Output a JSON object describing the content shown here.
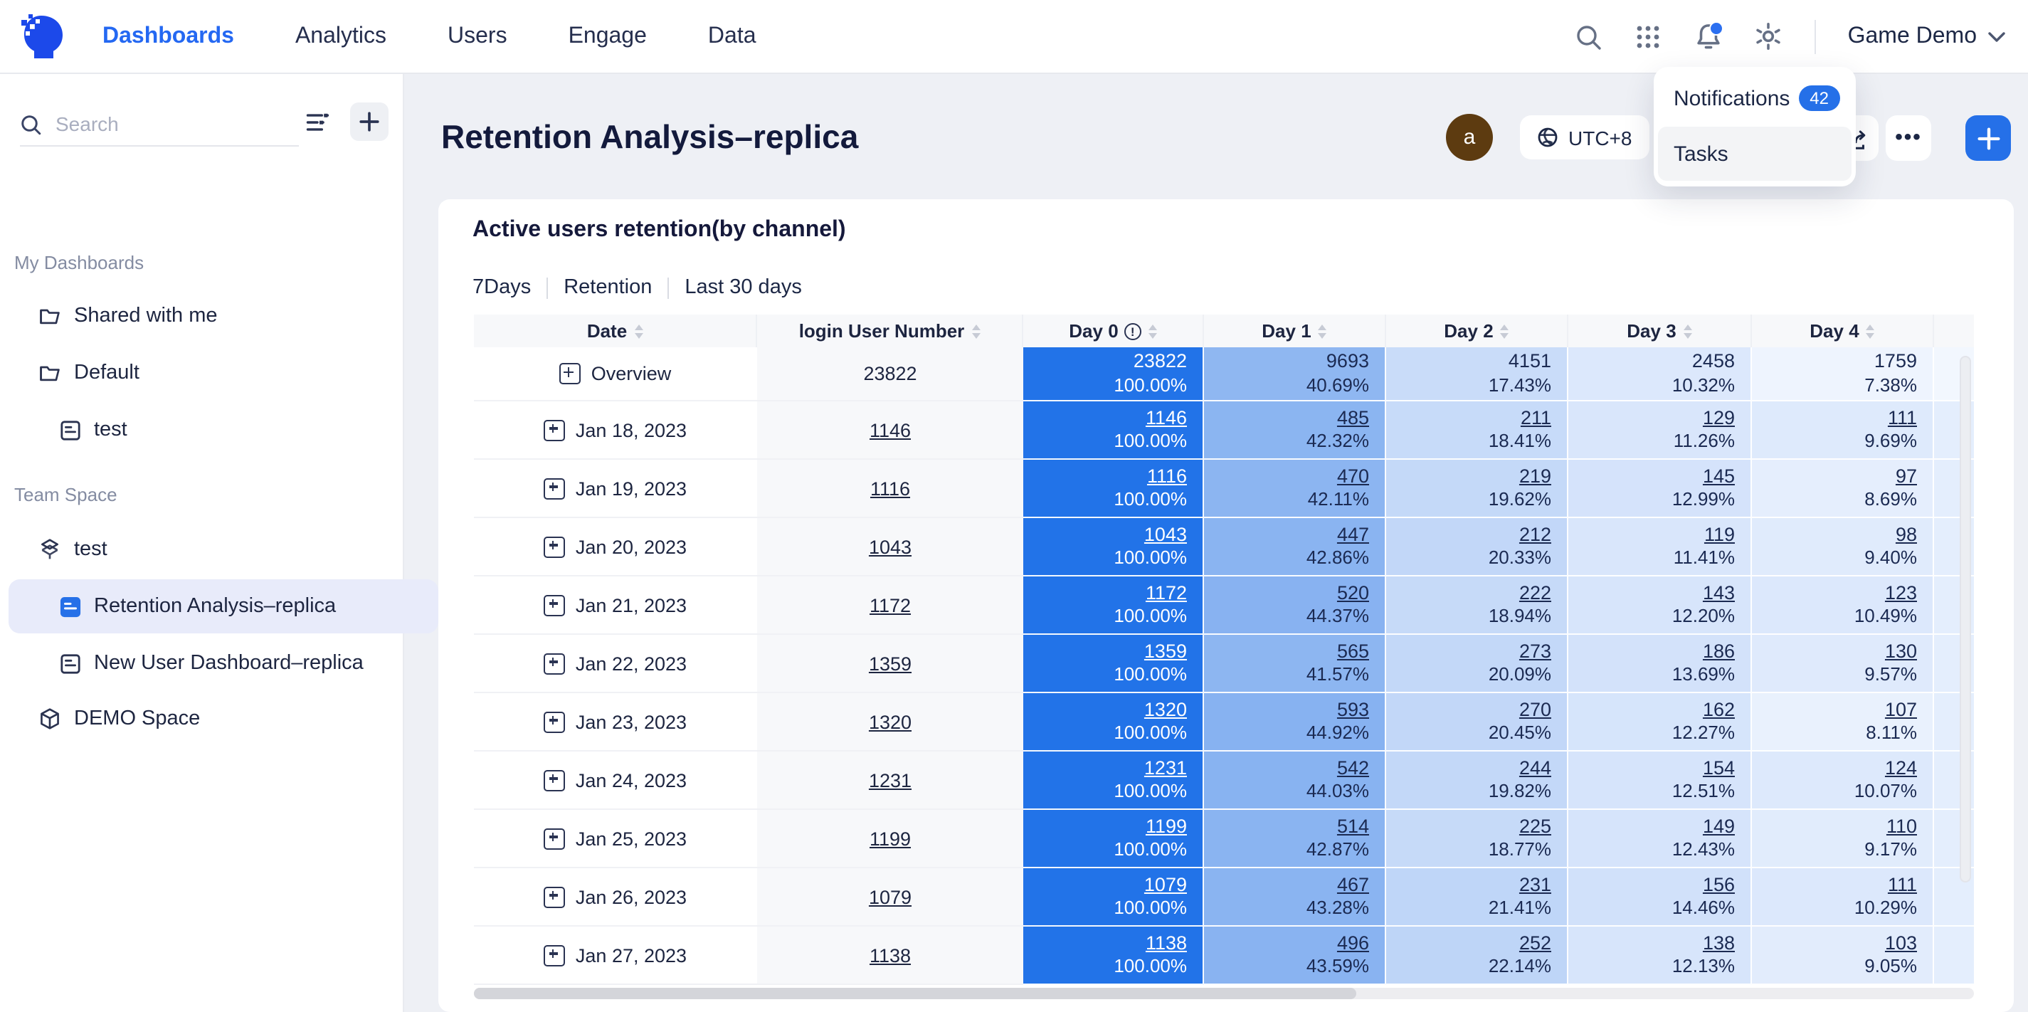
{
  "colors": {
    "accent": "#2468f2",
    "day0": "#2273e8",
    "bell_dot": "#2b6ff0",
    "badge": "#2570e8",
    "arrow": "#f5514f",
    "avatar_bg": "#5d3b10",
    "selected_item_bg": "#e8ebfa",
    "heat_stops": [
      [
        100,
        "#2273e8"
      ],
      [
        42,
        "#8cb5f1"
      ],
      [
        20,
        "#c3d8f8"
      ],
      [
        12,
        "#d7e5fb"
      ],
      [
        9.5,
        "#dfeafc"
      ],
      [
        7.5,
        "#eef4fe"
      ]
    ],
    "sliver_row": "#e4eefd",
    "sliver_overview": "#f2f7fe"
  },
  "nav": {
    "items": [
      {
        "label": "Dashboards",
        "active": true
      },
      {
        "label": "Analytics",
        "active": false
      },
      {
        "label": "Users",
        "active": false
      },
      {
        "label": "Engage",
        "active": false
      },
      {
        "label": "Data",
        "active": false
      }
    ],
    "account": "Game Demo"
  },
  "dropdown": {
    "items": [
      {
        "label": "Notifications",
        "badge": "42",
        "highlighted": false
      },
      {
        "label": "Tasks",
        "highlighted": true
      }
    ]
  },
  "sidebar": {
    "search_placeholder": "Search",
    "sections": [
      {
        "title": "My Dashboards",
        "items": [
          {
            "label": "Shared with me",
            "icon": "folder",
            "indent": 1,
            "selected": false
          },
          {
            "label": "Default",
            "icon": "folder",
            "indent": 1,
            "selected": false
          },
          {
            "label": "test",
            "icon": "doc",
            "indent": 2,
            "selected": false
          }
        ]
      },
      {
        "title": "Team Space",
        "items": [
          {
            "label": "test",
            "icon": "layers",
            "indent": 1,
            "selected": false
          },
          {
            "label": "Retention Analysis–replica",
            "icon": "doc-blue",
            "indent": 2,
            "selected": true
          },
          {
            "label": "New User Dashboard–replica",
            "icon": "doc",
            "indent": 2,
            "selected": false
          },
          {
            "label": "DEMO Space",
            "icon": "cube",
            "indent": 1,
            "selected": false
          }
        ]
      }
    ]
  },
  "page": {
    "title": "Retention Analysis–replica",
    "avatar_letter": "a",
    "timezone": "UTC+8"
  },
  "card": {
    "title": "Active users retention(by channel)",
    "filters": [
      "7Days",
      "Retention",
      "Last 30 days"
    ]
  },
  "table": {
    "columns": [
      {
        "label": "Date"
      },
      {
        "label": "login User Number"
      },
      {
        "label": "Day 0",
        "info": true
      },
      {
        "label": "Day 1"
      },
      {
        "label": "Day 2"
      },
      {
        "label": "Day 3"
      },
      {
        "label": "Day 4"
      }
    ],
    "rows": [
      {
        "date": "Overview",
        "login": "23822",
        "link": false,
        "days": [
          {
            "v": "23822",
            "p": "100.00%"
          },
          {
            "v": "9693",
            "p": "40.69%"
          },
          {
            "v": "4151",
            "p": "17.43%"
          },
          {
            "v": "2458",
            "p": "10.32%"
          },
          {
            "v": "1759",
            "p": "7.38%"
          }
        ]
      },
      {
        "date": "Jan 18, 2023",
        "login": "1146",
        "link": true,
        "days": [
          {
            "v": "1146",
            "p": "100.00%"
          },
          {
            "v": "485",
            "p": "42.32%"
          },
          {
            "v": "211",
            "p": "18.41%"
          },
          {
            "v": "129",
            "p": "11.26%"
          },
          {
            "v": "111",
            "p": "9.69%"
          }
        ]
      },
      {
        "date": "Jan 19, 2023",
        "login": "1116",
        "link": true,
        "days": [
          {
            "v": "1116",
            "p": "100.00%"
          },
          {
            "v": "470",
            "p": "42.11%"
          },
          {
            "v": "219",
            "p": "19.62%"
          },
          {
            "v": "145",
            "p": "12.99%"
          },
          {
            "v": "97",
            "p": "8.69%"
          }
        ]
      },
      {
        "date": "Jan 20, 2023",
        "login": "1043",
        "link": true,
        "days": [
          {
            "v": "1043",
            "p": "100.00%"
          },
          {
            "v": "447",
            "p": "42.86%"
          },
          {
            "v": "212",
            "p": "20.33%"
          },
          {
            "v": "119",
            "p": "11.41%"
          },
          {
            "v": "98",
            "p": "9.40%"
          }
        ]
      },
      {
        "date": "Jan 21, 2023",
        "login": "1172",
        "link": true,
        "days": [
          {
            "v": "1172",
            "p": "100.00%"
          },
          {
            "v": "520",
            "p": "44.37%"
          },
          {
            "v": "222",
            "p": "18.94%"
          },
          {
            "v": "143",
            "p": "12.20%"
          },
          {
            "v": "123",
            "p": "10.49%"
          }
        ]
      },
      {
        "date": "Jan 22, 2023",
        "login": "1359",
        "link": true,
        "days": [
          {
            "v": "1359",
            "p": "100.00%"
          },
          {
            "v": "565",
            "p": "41.57%"
          },
          {
            "v": "273",
            "p": "20.09%"
          },
          {
            "v": "186",
            "p": "13.69%"
          },
          {
            "v": "130",
            "p": "9.57%"
          }
        ]
      },
      {
        "date": "Jan 23, 2023",
        "login": "1320",
        "link": true,
        "days": [
          {
            "v": "1320",
            "p": "100.00%"
          },
          {
            "v": "593",
            "p": "44.92%"
          },
          {
            "v": "270",
            "p": "20.45%"
          },
          {
            "v": "162",
            "p": "12.27%"
          },
          {
            "v": "107",
            "p": "8.11%"
          }
        ]
      },
      {
        "date": "Jan 24, 2023",
        "login": "1231",
        "link": true,
        "days": [
          {
            "v": "1231",
            "p": "100.00%"
          },
          {
            "v": "542",
            "p": "44.03%"
          },
          {
            "v": "244",
            "p": "19.82%"
          },
          {
            "v": "154",
            "p": "12.51%"
          },
          {
            "v": "124",
            "p": "10.07%"
          }
        ]
      },
      {
        "date": "Jan 25, 2023",
        "login": "1199",
        "link": true,
        "days": [
          {
            "v": "1199",
            "p": "100.00%"
          },
          {
            "v": "514",
            "p": "42.87%"
          },
          {
            "v": "225",
            "p": "18.77%"
          },
          {
            "v": "149",
            "p": "12.43%"
          },
          {
            "v": "110",
            "p": "9.17%"
          }
        ]
      },
      {
        "date": "Jan 26, 2023",
        "login": "1079",
        "link": true,
        "days": [
          {
            "v": "1079",
            "p": "100.00%"
          },
          {
            "v": "467",
            "p": "43.28%"
          },
          {
            "v": "231",
            "p": "21.41%"
          },
          {
            "v": "156",
            "p": "14.46%"
          },
          {
            "v": "111",
            "p": "10.29%"
          }
        ]
      },
      {
        "date": "Jan 27, 2023",
        "login": "1138",
        "link": true,
        "days": [
          {
            "v": "1138",
            "p": "100.00%"
          },
          {
            "v": "496",
            "p": "43.59%"
          },
          {
            "v": "252",
            "p": "22.14%"
          },
          {
            "v": "138",
            "p": "12.13%"
          },
          {
            "v": "103",
            "p": "9.05%"
          }
        ]
      }
    ]
  }
}
